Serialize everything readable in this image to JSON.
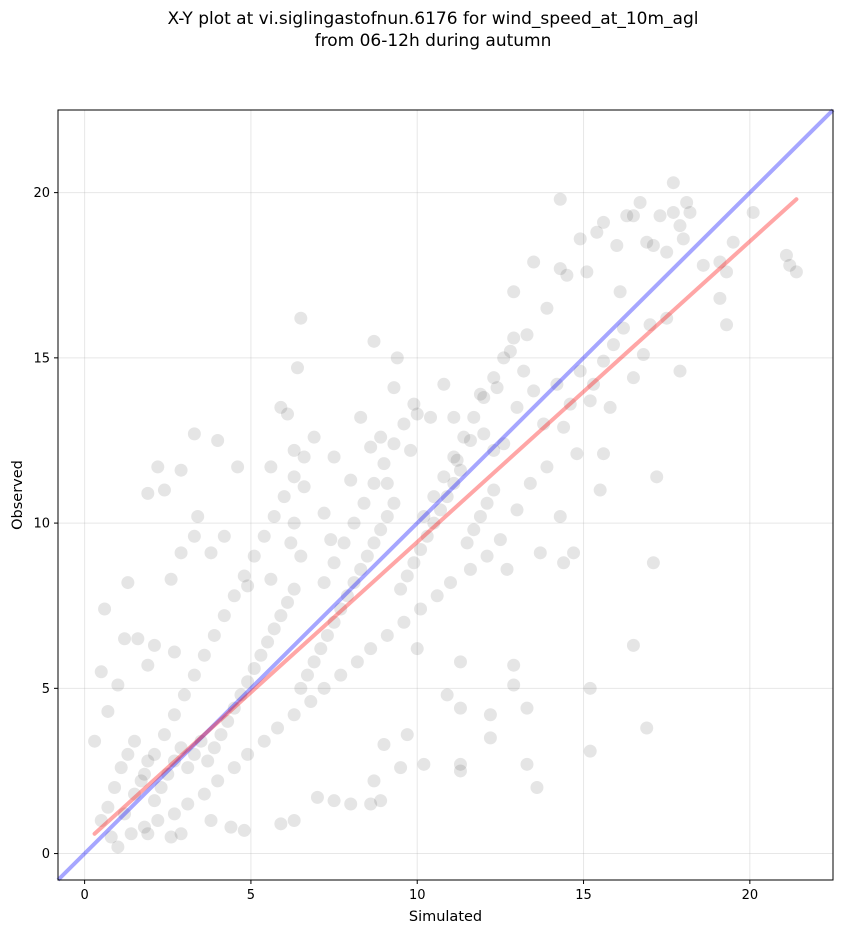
{
  "chart_data": {
    "type": "scatter",
    "title_line1": "X-Y plot at vi.siglingastofnun.6176 for wind_speed_at_10m_agl",
    "title_line2": "from 06-12h during autumn",
    "xlabel": "Simulated",
    "ylabel": "Observed",
    "xlim": [
      -0.8,
      22.5
    ],
    "ylim": [
      -0.8,
      22.5
    ],
    "xticks": [
      0,
      5,
      10,
      15,
      20
    ],
    "yticks": [
      0,
      5,
      10,
      15,
      20
    ],
    "grid": true,
    "point_color": "#000000",
    "point_alpha": 0.1,
    "identity_line": {
      "color": "#0000ff",
      "alpha": 0.35,
      "x": [
        -0.8,
        22.5
      ],
      "y": [
        -0.8,
        22.5
      ]
    },
    "fit_line": {
      "color": "#ff0000",
      "alpha": 0.35,
      "x": [
        0.3,
        21.4
      ],
      "y": [
        0.6,
        19.8
      ]
    },
    "points": [
      [
        0.6,
        7.4
      ],
      [
        1.3,
        8.2
      ],
      [
        1.9,
        10.9
      ],
      [
        2.2,
        11.7
      ],
      [
        2.4,
        11.0
      ],
      [
        2.9,
        11.6
      ],
      [
        3.3,
        12.7
      ],
      [
        4.0,
        12.5
      ],
      [
        4.6,
        11.7
      ],
      [
        5.6,
        11.7
      ],
      [
        5.9,
        13.5
      ],
      [
        6.1,
        13.3
      ],
      [
        6.4,
        14.7
      ],
      [
        6.5,
        16.2
      ],
      [
        6.3,
        12.2
      ],
      [
        6.6,
        11.1
      ],
      [
        7.5,
        12.0
      ],
      [
        8.3,
        13.2
      ],
      [
        8.7,
        15.5
      ],
      [
        9.3,
        14.1
      ],
      [
        9.4,
        15.0
      ],
      [
        10.0,
        13.3
      ],
      [
        11.1,
        13.2
      ],
      [
        11.9,
        13.9
      ],
      [
        12.4,
        14.1
      ],
      [
        12.8,
        15.2
      ],
      [
        12.9,
        17.0
      ],
      [
        13.3,
        15.7
      ],
      [
        13.5,
        17.9
      ],
      [
        13.9,
        16.5
      ],
      [
        14.3,
        17.7
      ],
      [
        14.3,
        19.8
      ],
      [
        14.5,
        17.5
      ],
      [
        14.9,
        18.6
      ],
      [
        15.1,
        17.6
      ],
      [
        15.4,
        18.8
      ],
      [
        15.6,
        19.1
      ],
      [
        16.0,
        18.4
      ],
      [
        16.1,
        17.0
      ],
      [
        16.3,
        19.3
      ],
      [
        16.5,
        19.3
      ],
      [
        16.7,
        19.7
      ],
      [
        16.9,
        18.5
      ],
      [
        17.1,
        18.4
      ],
      [
        17.3,
        19.3
      ],
      [
        17.5,
        18.2
      ],
      [
        17.7,
        19.4
      ],
      [
        17.9,
        19.0
      ],
      [
        17.7,
        20.3
      ],
      [
        18.1,
        19.7
      ],
      [
        18.0,
        18.6
      ],
      [
        18.2,
        19.4
      ],
      [
        18.6,
        17.8
      ],
      [
        19.1,
        17.9
      ],
      [
        19.3,
        17.6
      ],
      [
        19.5,
        18.5
      ],
      [
        19.1,
        16.8
      ],
      [
        19.3,
        16.0
      ],
      [
        20.1,
        19.4
      ],
      [
        21.1,
        18.1
      ],
      [
        21.2,
        17.8
      ],
      [
        21.4,
        17.6
      ],
      [
        17.9,
        14.6
      ],
      [
        17.5,
        16.2
      ],
      [
        17.2,
        11.4
      ],
      [
        17.1,
        8.8
      ],
      [
        16.9,
        3.8
      ],
      [
        16.5,
        6.3
      ],
      [
        15.2,
        3.1
      ],
      [
        15.2,
        5.0
      ],
      [
        15.5,
        11.0
      ],
      [
        15.6,
        12.1
      ],
      [
        14.8,
        12.1
      ],
      [
        14.7,
        9.1
      ],
      [
        14.3,
        10.2
      ],
      [
        14.4,
        8.8
      ],
      [
        13.7,
        9.1
      ],
      [
        13.6,
        2.0
      ],
      [
        13.3,
        2.7
      ],
      [
        13.3,
        4.4
      ],
      [
        12.9,
        5.7
      ],
      [
        12.9,
        5.1
      ],
      [
        12.7,
        8.6
      ],
      [
        12.2,
        4.2
      ],
      [
        12.2,
        3.5
      ],
      [
        11.3,
        2.7
      ],
      [
        11.3,
        2.5
      ],
      [
        11.3,
        4.4
      ],
      [
        11.3,
        5.8
      ],
      [
        10.9,
        4.8
      ],
      [
        10.2,
        2.7
      ],
      [
        10.0,
        6.2
      ],
      [
        9.7,
        3.6
      ],
      [
        9.5,
        2.6
      ],
      [
        9.0,
        3.3
      ],
      [
        8.7,
        2.2
      ],
      [
        8.9,
        1.6
      ],
      [
        8.6,
        1.5
      ],
      [
        8.0,
        1.5
      ],
      [
        7.5,
        1.6
      ],
      [
        7.0,
        1.7
      ],
      [
        6.3,
        1.0
      ],
      [
        5.9,
        0.9
      ],
      [
        4.8,
        0.7
      ],
      [
        4.4,
        0.8
      ],
      [
        3.8,
        1.0
      ],
      [
        2.9,
        0.6
      ],
      [
        2.6,
        0.5
      ],
      [
        1.9,
        0.6
      ],
      [
        1.4,
        0.6
      ],
      [
        1.0,
        0.2
      ],
      [
        0.8,
        0.5
      ],
      [
        0.3,
        3.4
      ],
      [
        0.5,
        5.5
      ],
      [
        0.7,
        4.3
      ],
      [
        1.0,
        5.1
      ],
      [
        1.2,
        6.5
      ],
      [
        1.6,
        6.5
      ],
      [
        1.9,
        5.7
      ],
      [
        2.1,
        6.3
      ],
      [
        2.7,
        6.1
      ],
      [
        2.6,
        8.3
      ],
      [
        2.9,
        9.1
      ],
      [
        3.3,
        9.6
      ],
      [
        3.4,
        10.2
      ],
      [
        3.8,
        9.1
      ],
      [
        4.2,
        9.6
      ],
      [
        4.9,
        8.1
      ],
      [
        5.6,
        8.3
      ],
      [
        6.2,
        9.4
      ],
      [
        6.3,
        10.0
      ],
      [
        6.5,
        9.0
      ],
      [
        7.2,
        10.3
      ],
      [
        7.4,
        9.5
      ],
      [
        8.0,
        11.3
      ],
      [
        8.6,
        12.3
      ],
      [
        8.9,
        12.6
      ],
      [
        9.1,
        11.2
      ],
      [
        9.8,
        12.2
      ],
      [
        10.4,
        13.2
      ],
      [
        10.8,
        14.2
      ],
      [
        11.2,
        11.9
      ],
      [
        11.6,
        12.5
      ],
      [
        12.0,
        12.7
      ],
      [
        12.3,
        12.2
      ],
      [
        12.6,
        12.4
      ],
      [
        13.0,
        13.5
      ],
      [
        13.2,
        14.6
      ],
      [
        13.5,
        14.0
      ],
      [
        13.8,
        13.0
      ],
      [
        14.2,
        14.2
      ],
      [
        14.6,
        13.6
      ],
      [
        14.9,
        14.6
      ],
      [
        15.3,
        14.2
      ],
      [
        15.6,
        14.9
      ],
      [
        15.9,
        15.4
      ],
      [
        16.2,
        15.9
      ],
      [
        16.5,
        14.4
      ],
      [
        16.8,
        15.1
      ],
      [
        17.0,
        16.0
      ],
      [
        15.8,
        13.5
      ],
      [
        15.2,
        13.7
      ],
      [
        14.4,
        12.9
      ],
      [
        13.9,
        11.7
      ],
      [
        13.4,
        11.2
      ],
      [
        13.0,
        10.4
      ],
      [
        12.5,
        9.5
      ],
      [
        12.1,
        9.0
      ],
      [
        11.6,
        8.6
      ],
      [
        11.0,
        8.2
      ],
      [
        10.6,
        7.8
      ],
      [
        10.1,
        7.4
      ],
      [
        9.6,
        7.0
      ],
      [
        9.1,
        6.6
      ],
      [
        8.6,
        6.2
      ],
      [
        8.2,
        5.8
      ],
      [
        7.7,
        5.4
      ],
      [
        7.2,
        5.0
      ],
      [
        6.8,
        4.6
      ],
      [
        6.3,
        4.2
      ],
      [
        5.8,
        3.8
      ],
      [
        5.4,
        3.4
      ],
      [
        4.9,
        3.0
      ],
      [
        4.5,
        2.6
      ],
      [
        4.0,
        2.2
      ],
      [
        3.6,
        1.8
      ],
      [
        3.1,
        1.5
      ],
      [
        2.7,
        1.2
      ],
      [
        2.2,
        1.0
      ],
      [
        1.8,
        0.8
      ],
      [
        1.2,
        1.2
      ],
      [
        1.5,
        1.8
      ],
      [
        1.8,
        2.4
      ],
      [
        2.1,
        3.0
      ],
      [
        2.4,
        3.6
      ],
      [
        2.7,
        4.2
      ],
      [
        3.0,
        4.8
      ],
      [
        3.3,
        5.4
      ],
      [
        3.6,
        6.0
      ],
      [
        3.9,
        6.6
      ],
      [
        4.2,
        7.2
      ],
      [
        4.5,
        7.8
      ],
      [
        4.8,
        8.4
      ],
      [
        5.1,
        9.0
      ],
      [
        5.4,
        9.6
      ],
      [
        5.7,
        10.2
      ],
      [
        6.0,
        10.8
      ],
      [
        6.3,
        11.4
      ],
      [
        6.6,
        12.0
      ],
      [
        6.9,
        12.6
      ],
      [
        7.2,
        8.2
      ],
      [
        7.5,
        8.8
      ],
      [
        7.8,
        9.4
      ],
      [
        8.1,
        10.0
      ],
      [
        8.4,
        10.6
      ],
      [
        8.7,
        11.2
      ],
      [
        9.0,
        11.8
      ],
      [
        9.3,
        12.4
      ],
      [
        9.6,
        13.0
      ],
      [
        9.9,
        13.6
      ],
      [
        10.2,
        10.2
      ],
      [
        10.5,
        10.8
      ],
      [
        10.8,
        11.4
      ],
      [
        11.1,
        12.0
      ],
      [
        11.4,
        12.6
      ],
      [
        11.7,
        13.2
      ],
      [
        12.0,
        13.8
      ],
      [
        12.3,
        14.4
      ],
      [
        12.6,
        15.0
      ],
      [
        12.9,
        15.6
      ],
      [
        0.5,
        1.0
      ],
      [
        0.7,
        1.4
      ],
      [
        0.9,
        2.0
      ],
      [
        1.1,
        2.6
      ],
      [
        1.3,
        3.0
      ],
      [
        1.5,
        3.4
      ],
      [
        1.7,
        2.2
      ],
      [
        1.9,
        2.8
      ],
      [
        2.1,
        1.6
      ],
      [
        2.3,
        2.0
      ],
      [
        2.5,
        2.4
      ],
      [
        2.7,
        2.8
      ],
      [
        2.9,
        3.2
      ],
      [
        3.1,
        2.6
      ],
      [
        3.3,
        3.0
      ],
      [
        3.5,
        3.4
      ],
      [
        3.7,
        2.8
      ],
      [
        3.9,
        3.2
      ],
      [
        4.1,
        3.6
      ],
      [
        4.3,
        4.0
      ],
      [
        4.5,
        4.4
      ],
      [
        4.7,
        4.8
      ],
      [
        4.9,
        5.2
      ],
      [
        5.1,
        5.6
      ],
      [
        5.3,
        6.0
      ],
      [
        5.5,
        6.4
      ],
      [
        5.7,
        6.8
      ],
      [
        5.9,
        7.2
      ],
      [
        6.1,
        7.6
      ],
      [
        6.3,
        8.0
      ],
      [
        6.5,
        5.0
      ],
      [
        6.7,
        5.4
      ],
      [
        6.9,
        5.8
      ],
      [
        7.1,
        6.2
      ],
      [
        7.3,
        6.6
      ],
      [
        7.5,
        7.0
      ],
      [
        7.7,
        7.4
      ],
      [
        7.9,
        7.8
      ],
      [
        8.1,
        8.2
      ],
      [
        8.3,
        8.6
      ],
      [
        8.5,
        9.0
      ],
      [
        8.7,
        9.4
      ],
      [
        8.9,
        9.8
      ],
      [
        9.1,
        10.2
      ],
      [
        9.3,
        10.6
      ],
      [
        9.5,
        8.0
      ],
      [
        9.7,
        8.4
      ],
      [
        9.9,
        8.8
      ],
      [
        10.1,
        9.2
      ],
      [
        10.3,
        9.6
      ],
      [
        10.5,
        10.0
      ],
      [
        10.7,
        10.4
      ],
      [
        10.9,
        10.8
      ],
      [
        11.1,
        11.2
      ],
      [
        11.3,
        11.6
      ],
      [
        11.5,
        9.4
      ],
      [
        11.7,
        9.8
      ],
      [
        11.9,
        10.2
      ],
      [
        12.1,
        10.6
      ],
      [
        12.3,
        11.0
      ]
    ]
  }
}
